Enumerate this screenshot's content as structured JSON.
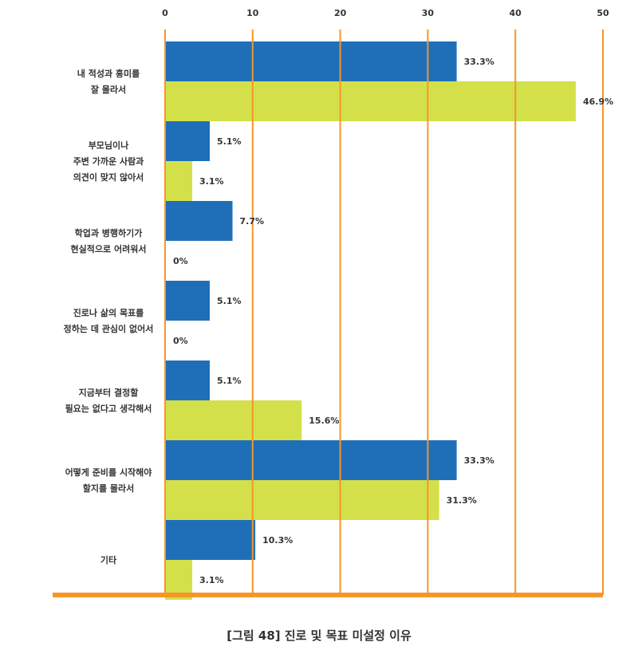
{
  "caption": "[그림 48] 진로 및 목표 미설정 이유",
  "chart_data": {
    "type": "bar",
    "orientation": "horizontal",
    "xlim": [
      0,
      50
    ],
    "ticks": [
      "0",
      "10",
      "20",
      "30",
      "40",
      "50"
    ],
    "tick_values": [
      0,
      10,
      20,
      30,
      40,
      50
    ],
    "grid": true,
    "colors": {
      "series1": "#1f6fb8",
      "series2": "#d4e04a",
      "axis": "#f5962b"
    },
    "categories": [
      [
        "내 적성과 흥미를",
        "잘 몰라서"
      ],
      [
        "부모님이나",
        "주변 가까운 사람과",
        "의견이 맞지 않아서"
      ],
      [
        "학업과 병행하기가",
        "현실적으로 어려워서"
      ],
      [
        "진로나 삶의 목표를",
        "정하는 데 관심이 없어서"
      ],
      [
        "지금부터 결정할",
        "필요는 없다고 생각해서"
      ],
      [
        "어떻게 준비를 시작해야",
        "할지를 몰라서"
      ],
      [
        "기타"
      ]
    ],
    "series": [
      {
        "values": [
          33.3,
          5.1,
          7.7,
          5.1,
          5.1,
          33.3,
          10.3
        ],
        "labels": [
          "33.3%",
          "5.1%",
          "7.7%",
          "5.1%",
          "5.1%",
          "33.3%",
          "10.3%"
        ]
      },
      {
        "values": [
          46.9,
          3.1,
          0,
          0,
          15.6,
          31.3,
          3.1
        ],
        "labels": [
          "46.9%",
          "3.1%",
          "0%",
          "0%",
          "15.6%",
          "31.3%",
          "3.1%"
        ]
      }
    ]
  }
}
